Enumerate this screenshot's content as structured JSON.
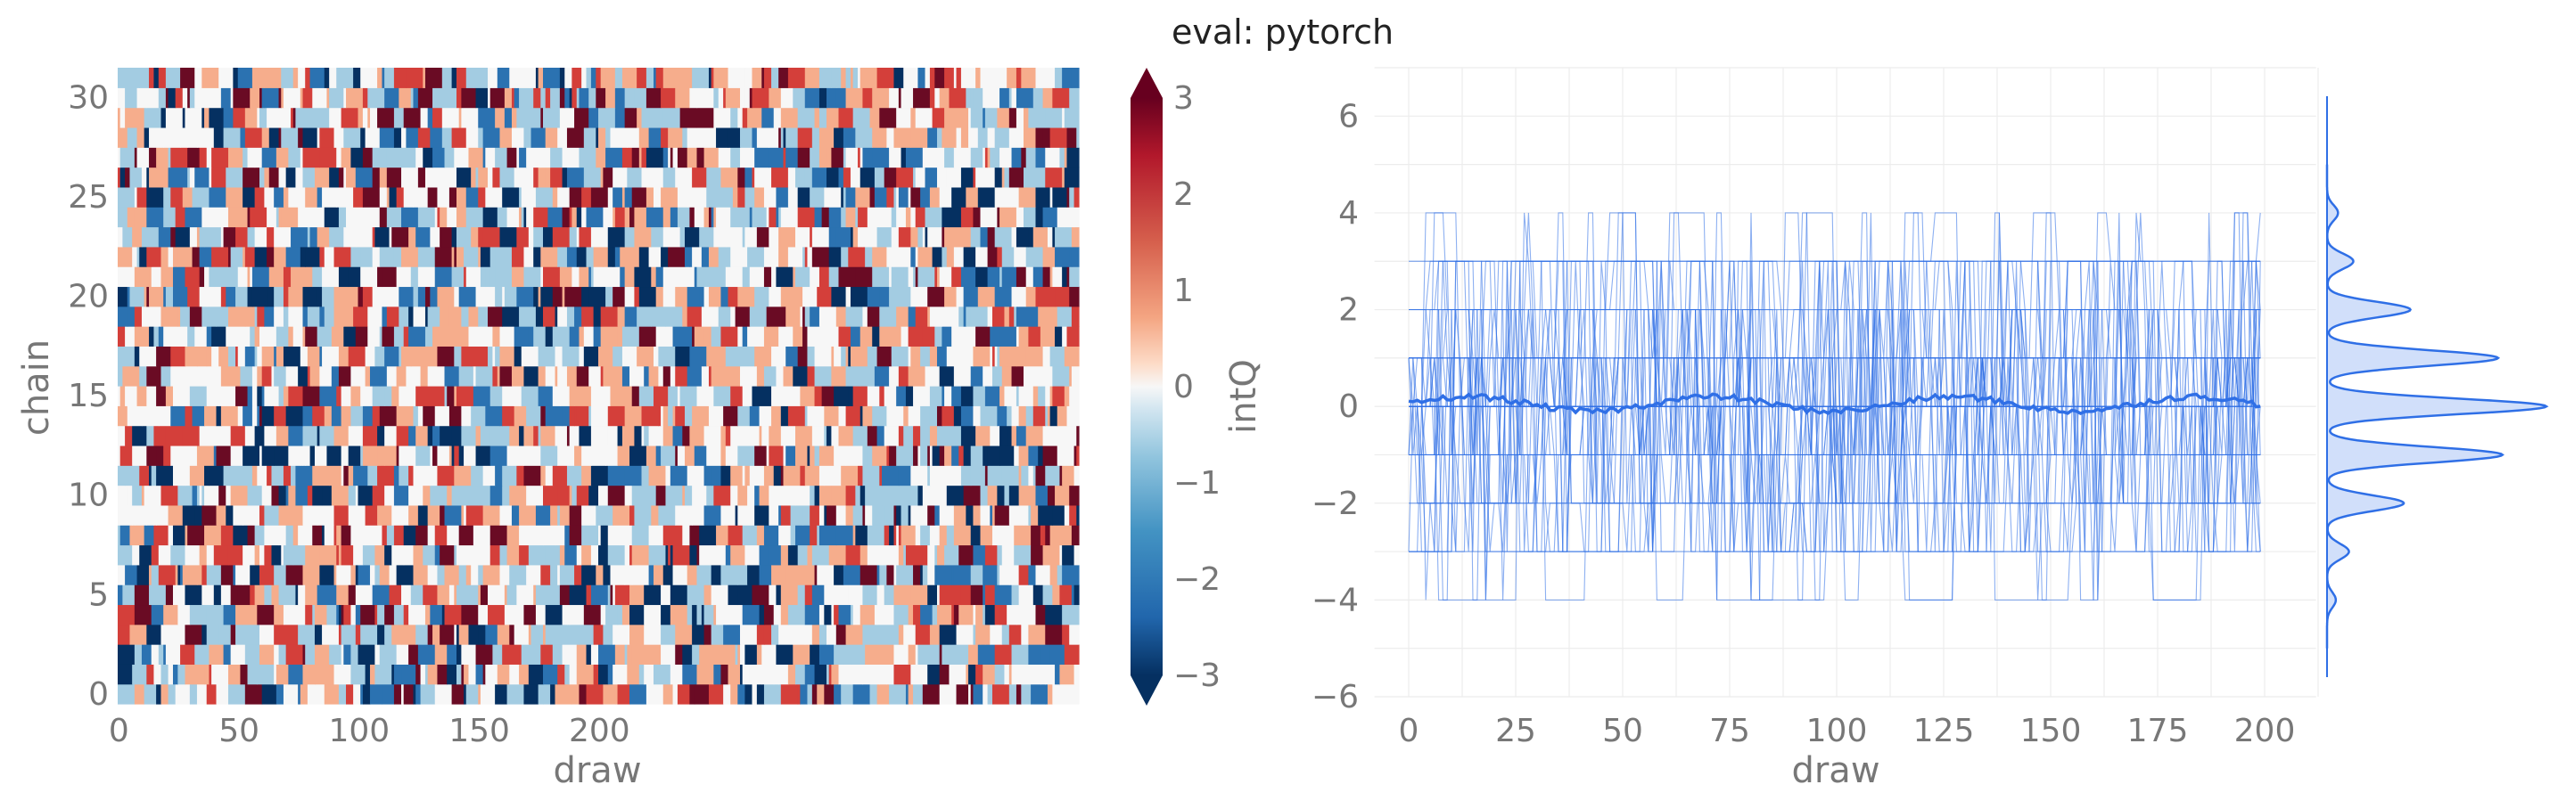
{
  "figure": {
    "title": "eval: pytorch"
  },
  "colors": {
    "accent": "#2f6fe6",
    "grid": "#ececec",
    "text_muted": "#777777",
    "cmap_low": "#053061",
    "cmap_mid": "#f7f7f7",
    "cmap_high": "#67001f"
  },
  "chart_data": [
    {
      "type": "heatmap",
      "title": "",
      "xlabel": "draw",
      "ylabel": "chain",
      "x_range": [
        0,
        399
      ],
      "y_range": [
        0,
        31
      ],
      "x_ticks": [
        0,
        50,
        100,
        150,
        200
      ],
      "y_ticks": [
        0,
        5,
        10,
        15,
        20,
        25,
        30
      ],
      "n_chains": 32,
      "n_draws": 400,
      "values": "integer topological charge intQ per chain (row) and draw (column), values in [-3, 3]; generated procedurally by the page script",
      "colorbar": {
        "label": "intQ",
        "range": [
          -3,
          3
        ],
        "ticks": [
          -3,
          -2,
          -1,
          0,
          1,
          2,
          3
        ],
        "tick_labels": [
          "−3",
          "−2",
          "−1",
          "0",
          "1",
          "2",
          "3"
        ],
        "extend": "both",
        "colormap": "RdBu_r"
      }
    },
    {
      "type": "line",
      "title": "",
      "xlabel": "draw",
      "ylabel": "",
      "xlim": [
        0,
        200
      ],
      "ylim": [
        -6,
        7
      ],
      "x_ticks": [
        0,
        25,
        50,
        75,
        100,
        125,
        150,
        175,
        200
      ],
      "y_ticks": [
        -6,
        -4,
        -2,
        0,
        2,
        4,
        6
      ],
      "y_tick_labels": [
        "−6",
        "−4",
        "−2",
        "0",
        "2",
        "4",
        "6"
      ],
      "series_description": "32 chain traces of intQ over 200 draws (thin lines) plus their mean (thick line, near 0)",
      "mean_approx": 0.05,
      "marginal": {
        "type": "kde",
        "orientation": "horizontal",
        "peaks_at": [
          -4,
          -3,
          -2,
          -1,
          0,
          1,
          2,
          3,
          4
        ],
        "relative_heights": [
          0.04,
          0.1,
          0.35,
          0.8,
          1.0,
          0.78,
          0.38,
          0.12,
          0.05
        ]
      }
    }
  ]
}
